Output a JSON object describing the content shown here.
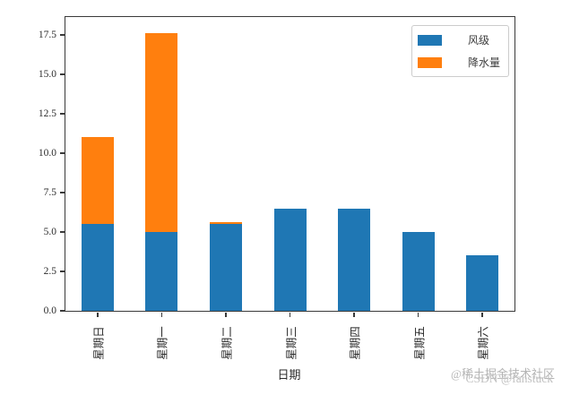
{
  "chart_data": {
    "type": "bar",
    "stacked": true,
    "title": "",
    "xlabel": "日期",
    "ylabel": "",
    "categories": [
      "星期日",
      "星期一",
      "星期二",
      "星期三",
      "星期四",
      "星期五",
      "星期六"
    ],
    "series": [
      {
        "name": "风级",
        "color": "#1f77b4",
        "values": [
          5.5,
          5.0,
          5.5,
          6.5,
          6.5,
          5.0,
          3.5
        ]
      },
      {
        "name": "降水量",
        "color": "#ff7f0e",
        "values": [
          5.5,
          12.6,
          0.1,
          0,
          0,
          0,
          0
        ]
      }
    ],
    "stack_totals": [
      11.0,
      17.6,
      5.6,
      6.5,
      6.5,
      5.0,
      3.5
    ],
    "yticks": [
      0.0,
      2.5,
      5.0,
      7.5,
      10.0,
      12.5,
      15.0,
      17.5
    ],
    "ylim": [
      0,
      18.64
    ],
    "x_tick_rotation": 90,
    "legend_position": "upper right",
    "grid": false,
    "axis_color": "#3a3a3a"
  },
  "watermark": {
    "line1": "@稀土掘金技术社区",
    "line2": "CSDN @fanstuck"
  }
}
